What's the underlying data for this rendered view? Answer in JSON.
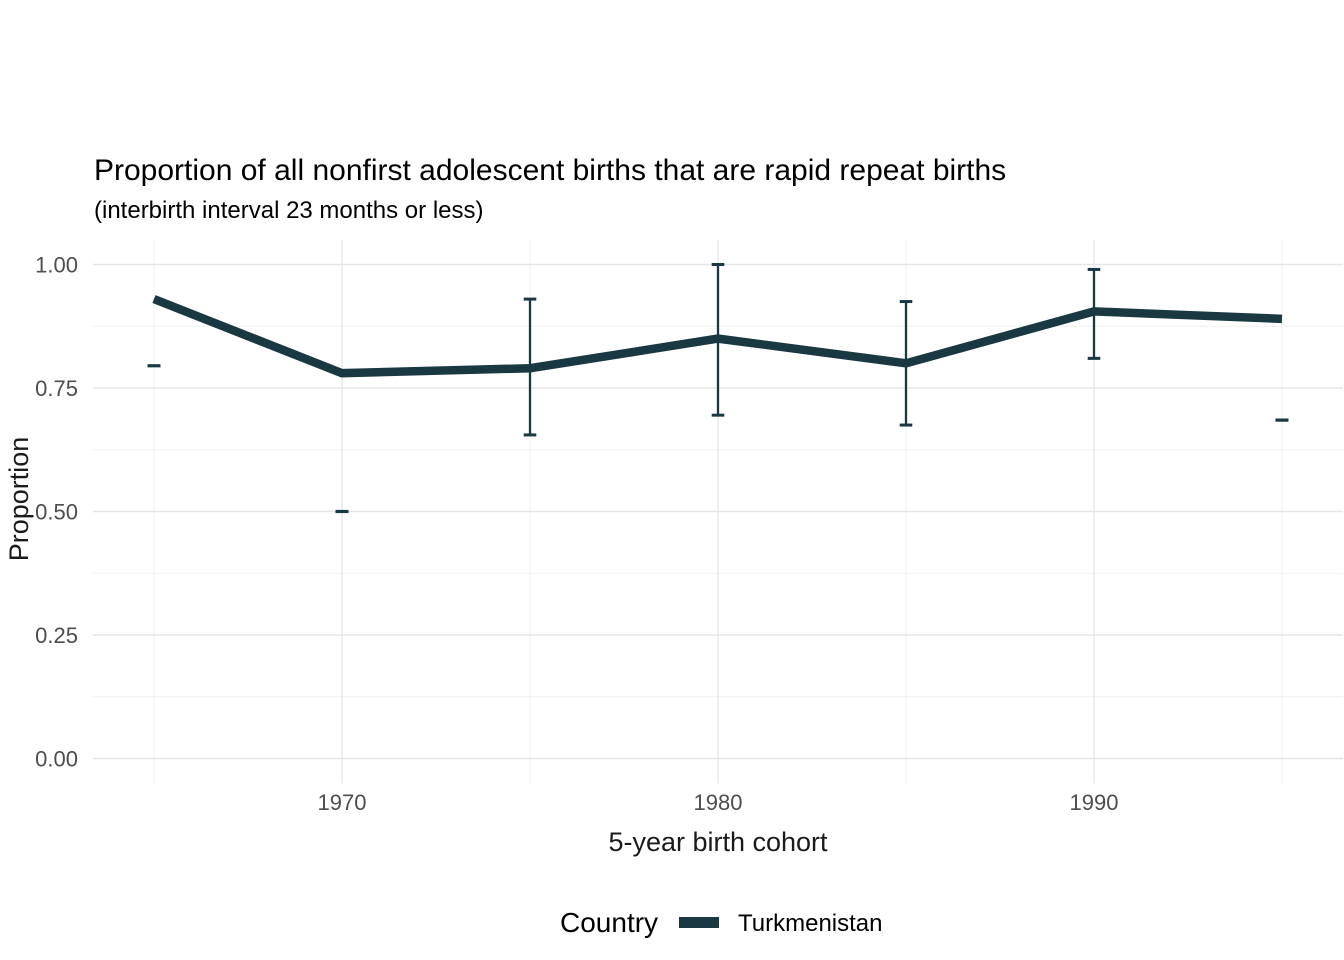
{
  "title": "Proportion of all nonfirst adolescent births that are rapid repeat births",
  "subtitle": "(interbirth interval 23 months or less)",
  "axes": {
    "x_title": "5-year birth cohort",
    "y_title": "Proportion",
    "x_ticks": [
      "1970",
      "1980",
      "1990"
    ],
    "y_ticks": [
      "1.00",
      "0.75",
      "0.50",
      "0.25",
      "0.00"
    ]
  },
  "legend": {
    "title": "Country",
    "items": [
      {
        "label": "Turkmenistan",
        "color": "#1a3842"
      }
    ]
  },
  "colors": {
    "line": "#1a3842",
    "grid_major": "#e6e6e6",
    "grid_minor": "#f0f0f0",
    "tick_text": "#4d4d4d",
    "background": "#ffffff"
  },
  "chart_data": {
    "type": "line",
    "title": "Proportion of all nonfirst adolescent births that are rapid repeat births",
    "subtitle": "(interbirth interval 23 months or less)",
    "xlabel": "5-year birth cohort",
    "ylabel": "Proportion",
    "x": [
      1965,
      1970,
      1975,
      1980,
      1985,
      1990,
      1995
    ],
    "x_tick_years": [
      1970,
      1980,
      1990
    ],
    "y_tick_values": [
      1.0,
      0.75,
      0.5,
      0.25,
      0.0
    ],
    "ylim": [
      0,
      1
    ],
    "grid": true,
    "legend_position": "bottom",
    "error_bars": true,
    "series": [
      {
        "name": "Turkmenistan",
        "color": "#1a3842",
        "values": [
          0.93,
          0.78,
          0.79,
          0.85,
          0.8,
          0.905,
          0.89
        ],
        "ci_low": [
          0.795,
          0.5,
          0.655,
          0.695,
          0.675,
          0.81,
          0.685
        ],
        "ci_high": [
          0.795,
          0.5,
          0.93,
          1.0,
          0.925,
          0.99,
          0.685
        ]
      }
    ]
  }
}
